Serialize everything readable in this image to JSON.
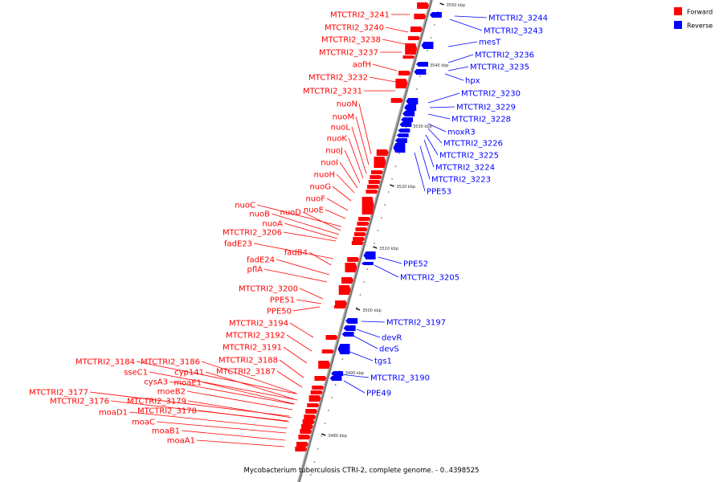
{
  "legend": [
    {
      "label": "Forward",
      "color": "#ff0000"
    },
    {
      "label": "Reverse",
      "color": "#0000ff"
    }
  ],
  "caption": "Mycobacterium tuberculosis CTRI-2, complete genome. - 0..4398525",
  "ticks": [
    "3550 kbp",
    "3540 kbp",
    "3530 kbp",
    "3520 kbp",
    "3510 kbp",
    "3500 kbp",
    "3490 kbp",
    "3480 kbp"
  ],
  "forward_labels": [
    "MTCTRI2_3241",
    "MTCTRI2_3240",
    "MTCTRI2_3238",
    "MTCTRI2_3237",
    "aofH",
    "MTCTRI2_3232",
    "MTCTRI2_3231",
    "nuoN",
    "nuoM",
    "nuoL",
    "nuoK",
    "nuoJ",
    "nuoI",
    "nuoH",
    "nuoG",
    "nuoF",
    "nuoE",
    "nuoC",
    "nuoD",
    "nuoB",
    "nuoA",
    "MTCTRI2_3206",
    "fadE23",
    "fadB4",
    "fadE24",
    "pflA",
    "MTCTRI2_3200",
    "PPE51",
    "PPE50",
    "MTCTRI2_3194",
    "MTCTRI2_3192",
    "MTCTRI2_3191",
    "MTCTRI2_3188",
    "MTCTRI2_3187",
    "MTCTRI2_3184",
    "MTCTRI2_3186",
    "sseC1",
    "cyp141",
    "cysA3",
    "moaE1",
    "moeB2",
    "MTCTRI2_3177",
    "MTCTRI2_3179",
    "MTCTRI2_3176",
    "MTCTRI2_3178",
    "moaD1",
    "moaC",
    "moaB1",
    "moaA1"
  ],
  "reverse_labels": [
    "MTCTRI2_3244",
    "MTCTRI2_3243",
    "mesT",
    "MTCTRI2_3236",
    "MTCTRI2_3235",
    "hpx",
    "MTCTRI2_3230",
    "MTCTRI2_3229",
    "MTCTRI2_3228",
    "moxR3",
    "MTCTRI2_3226",
    "MTCTRI2_3225",
    "MTCTRI2_3224",
    "MTCTRI2_3223",
    "PPE53",
    "PPE52",
    "MTCTRI2_3205",
    "MTCTRI2_3197",
    "devR",
    "devS",
    "tgs1",
    "MTCTRI2_3190",
    "PPE49"
  ]
}
